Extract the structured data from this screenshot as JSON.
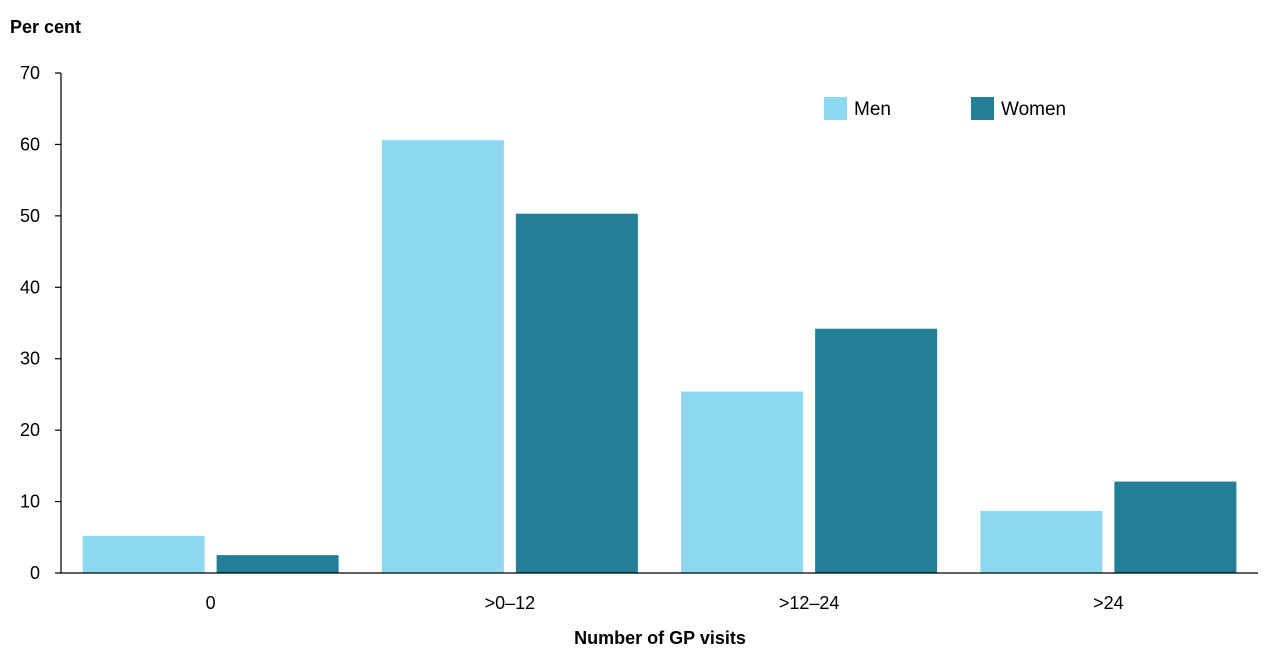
{
  "chart_data": {
    "type": "bar",
    "categories": [
      "0",
      ">0–12",
      ">12–24",
      ">24"
    ],
    "series": [
      {
        "name": "Men",
        "color": "#8ED8F0",
        "values": [
          5.2,
          60.6,
          25.4,
          8.7
        ]
      },
      {
        "name": "Women",
        "color": "#237E97",
        "values": [
          2.5,
          50.3,
          34.2,
          12.8
        ]
      }
    ],
    "xlabel": "Number of GP visits",
    "ylabel": "Per cent",
    "ylim": [
      0,
      70
    ],
    "yticks": [
      0,
      10,
      20,
      30,
      40,
      50,
      60,
      70
    ],
    "grid": false,
    "legend_position": "top-right"
  }
}
